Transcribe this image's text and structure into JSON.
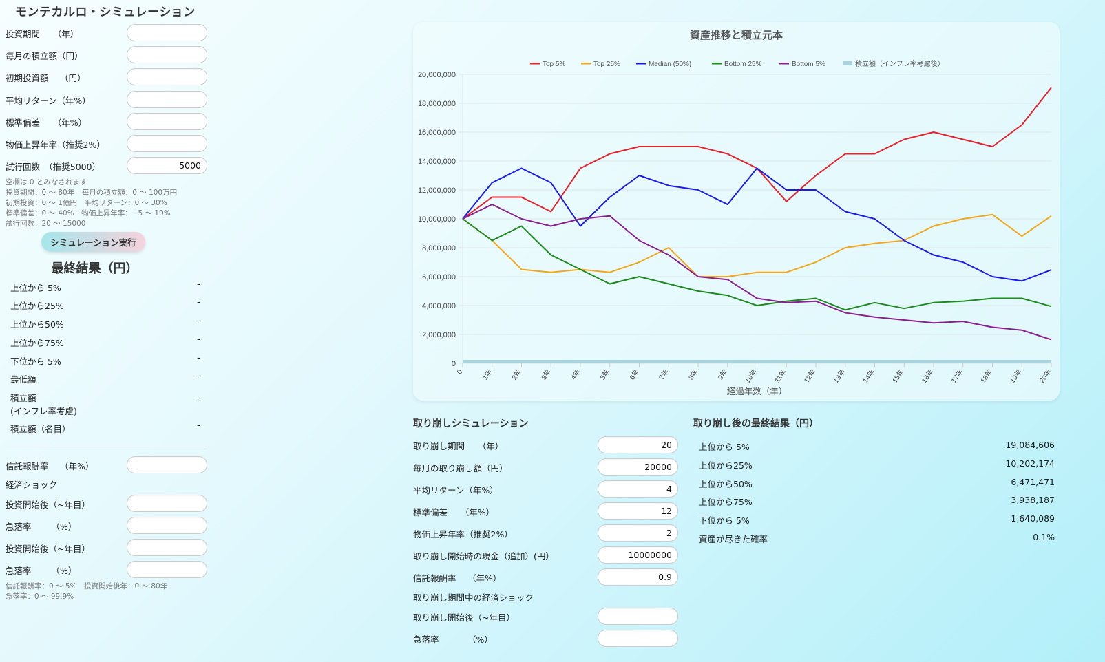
{
  "left": {
    "title": "モンテカルロ・シミュレーション",
    "fields": [
      {
        "label": "投資期間　　（年）",
        "value": ""
      },
      {
        "label": "毎月の積立額（円）",
        "value": ""
      },
      {
        "label": "初期投資額　 （円）",
        "value": ""
      },
      {
        "label": "平均リターン（年%）",
        "value": ""
      },
      {
        "label": "標準偏差　　（年%）",
        "value": ""
      },
      {
        "label": "物価上昇年率（推奨2%）",
        "value": ""
      },
      {
        "label": "試行回数　（推奨5000）",
        "value": "5000"
      }
    ],
    "notes": [
      "空欄は 0 とみなされます",
      "投資期間：0 ～ 80年　毎月の積立額：0 ～ 100万円",
      "初期投資：0 ～ 1億円　平均リターン：0 ～ 30%",
      "標準偏差：0 ～ 40%　物価上昇年率：−5 ～ 10%",
      "試行回数：20 ～ 15000"
    ],
    "run_button": "シミュレーション実行",
    "results_title": "最終結果（円）",
    "results": [
      {
        "label": "上位から 5%",
        "value": "-"
      },
      {
        "label": "上位から25%",
        "value": "-"
      },
      {
        "label": "上位から50%",
        "value": "-"
      },
      {
        "label": "上位から75%",
        "value": "-"
      },
      {
        "label": "下位から 5%",
        "value": "-"
      },
      {
        "label": "最低額",
        "value": "-"
      },
      {
        "label": "積立額\n(インフレ率考慮)",
        "value": "-"
      },
      {
        "label": "積立額（名目）",
        "value": "-"
      }
    ],
    "fee_label": "信託報酬率　 （年%）",
    "fee_value": "",
    "shock_label": "経済ショック",
    "shocks": [
      {
        "label": "投資開始後（~年目）",
        "value": ""
      },
      {
        "label": "急落率　　 （%）",
        "value": ""
      },
      {
        "label": "投資開始後（~年目）",
        "value": ""
      },
      {
        "label": "急落率　　 （%）",
        "value": ""
      }
    ],
    "notes2": [
      "信託報酬率：0 ～ 5%　投資開始後年：0 ～ 80年",
      "急落率：0 ～ 99.9%"
    ]
  },
  "withdraw": {
    "title": "取り崩しシミュレーション",
    "fields": [
      {
        "label": "取り崩し期間　　（年）",
        "value": "20"
      },
      {
        "label": "毎月の取り崩し額（円）",
        "value": "20000"
      },
      {
        "label": "平均リターン（年%）",
        "value": "4"
      },
      {
        "label": "標準偏差　　（年%）",
        "value": "12"
      },
      {
        "label": "物価上昇年率（推奨2%）",
        "value": "2"
      },
      {
        "label": "取り崩し開始時の現金（追加）(円）",
        "value": "10000000"
      },
      {
        "label": "信託報酬率　 （年%）",
        "value": "0.9"
      }
    ],
    "shock_label": "取り崩し期間中の経済ショック",
    "shocks": [
      {
        "label": "取り崩し開始後（~年目）",
        "value": ""
      },
      {
        "label": "急落率　　　 （%）",
        "value": ""
      }
    ]
  },
  "withdraw_results": {
    "title": "取り崩し後の最終結果（円）",
    "rows": [
      {
        "label": "上位から 5%",
        "value": "19,084,606"
      },
      {
        "label": "上位から25%",
        "value": "10,202,174"
      },
      {
        "label": "上位から50%",
        "value": "6,471,471"
      },
      {
        "label": "上位から75%",
        "value": "3,938,187"
      },
      {
        "label": "下位から 5%",
        "value": "1,640,089"
      },
      {
        "label": "資産が尽きた確率",
        "value": "0.1%"
      }
    ]
  },
  "chart_data": {
    "type": "line",
    "title": "資産推移と積立元本",
    "xlabel": "経過年数（年）",
    "ylabel": "",
    "ylim": [
      0,
      20000000
    ],
    "grid": true,
    "legend_position": "top",
    "x": [
      "0",
      "1年",
      "2年",
      "3年",
      "4年",
      "5年",
      "6年",
      "7年",
      "8年",
      "9年",
      "10年",
      "11年",
      "12年",
      "13年",
      "14年",
      "15年",
      "16年",
      "17年",
      "18年",
      "19年",
      "20年"
    ],
    "yticks": [
      "0",
      "2,000,000",
      "4,000,000",
      "6,000,000",
      "8,000,000",
      "10,000,000",
      "12,000,000",
      "14,000,000",
      "16,000,000",
      "18,000,000",
      "20,000,000"
    ],
    "series": [
      {
        "name": "Top 5%",
        "color": "#e8202a",
        "values": [
          10000000,
          11500000,
          11500000,
          10500000,
          13500000,
          14500000,
          15000000,
          15000000,
          15000000,
          14500000,
          13500000,
          11200000,
          13000000,
          14500000,
          14500000,
          15500000,
          16000000,
          15500000,
          15000000,
          16500000,
          19084606
        ]
      },
      {
        "name": "Top 25%",
        "color": "#f2a81d",
        "values": [
          10000000,
          8500000,
          6500000,
          6300000,
          6500000,
          6300000,
          7000000,
          8000000,
          6000000,
          6000000,
          6300000,
          6300000,
          7000000,
          8000000,
          8300000,
          8500000,
          9500000,
          10000000,
          10300000,
          8800000,
          10202174
        ]
      },
      {
        "name": "Median (50%)",
        "color": "#1a1aee",
        "values": [
          10000000,
          12500000,
          13500000,
          12500000,
          9500000,
          11500000,
          13000000,
          12300000,
          12000000,
          11000000,
          13500000,
          12000000,
          12000000,
          10500000,
          10000000,
          8500000,
          7500000,
          7000000,
          6000000,
          5700000,
          6471471
        ]
      },
      {
        "name": "Bottom 25%",
        "color": "#1c8a1c",
        "values": [
          10000000,
          8500000,
          9500000,
          7500000,
          6500000,
          5500000,
          6000000,
          5500000,
          5000000,
          4700000,
          4000000,
          4300000,
          4500000,
          3700000,
          4200000,
          3800000,
          4200000,
          4300000,
          4500000,
          4500000,
          3938187
        ]
      },
      {
        "name": "Bottom 5%",
        "color": "#8a1f8f",
        "values": [
          10000000,
          11000000,
          10000000,
          9500000,
          10000000,
          10200000,
          8500000,
          7500000,
          6000000,
          5800000,
          4500000,
          4200000,
          4300000,
          3500000,
          3200000,
          3000000,
          2800000,
          2900000,
          2500000,
          2300000,
          1640089
        ]
      },
      {
        "name": "積立額（インフレ率考慮後）",
        "color": "#a8d4e0",
        "type": "area",
        "values": [
          0,
          0,
          0,
          0,
          0,
          0,
          0,
          0,
          0,
          0,
          0,
          0,
          0,
          0,
          0,
          0,
          0,
          0,
          0,
          0,
          0
        ]
      }
    ]
  }
}
